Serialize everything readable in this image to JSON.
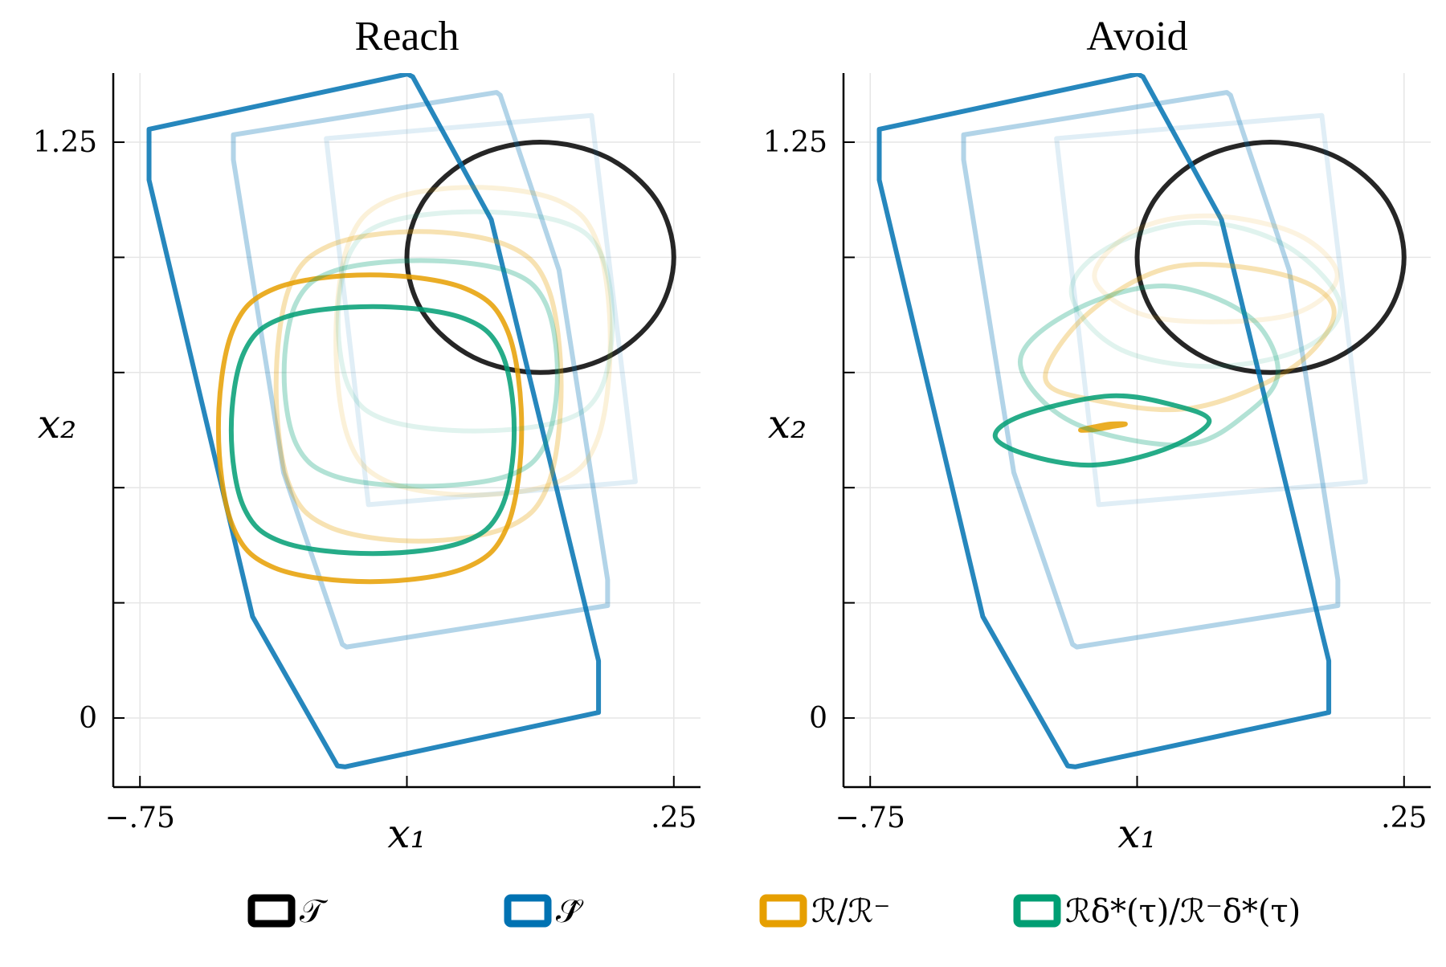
{
  "chart_data": [
    {
      "type": "polygon",
      "title": "Reach",
      "x_label": "x₁",
      "y_label": "x₂",
      "xlim": [
        -0.8,
        0.3
      ],
      "ylim": [
        -0.15,
        1.4
      ],
      "xticks": [
        {
          "value": -0.75,
          "label": "−.75"
        },
        {
          "value": -0.25,
          "label": null
        },
        {
          "value": 0.25,
          "label": ".25"
        }
      ],
      "yticks": [
        0,
        {
          "value": 0.25,
          "label": null
        },
        {
          "value": 0.5,
          "label": null
        },
        {
          "value": 0.75,
          "label": null
        },
        {
          "value": 1.0,
          "label": null
        },
        1.25
      ],
      "grid": true,
      "series": [
        {
          "color": "#000000",
          "opacity": 0.85,
          "smooth": true,
          "x": [
            0.25,
            0.217,
            0.125,
            0,
            -0.125,
            -0.217,
            -0.25,
            -0.217,
            -0.125,
            0,
            0.125,
            0.217
          ],
          "y": [
            1,
            1.125,
            1.217,
            1.25,
            1.217,
            1.125,
            1,
            0.875,
            0.783,
            0.75,
            0.783,
            0.875
          ]
        },
        {
          "color": "#0072b2",
          "opacity": 0.12,
          "smooth": false,
          "x": [
            -0.401,
            0.096,
            0.178,
            -0.322
          ],
          "y": [
            1.258,
            1.308,
            0.513,
            0.463
          ]
        },
        {
          "color": "#0072b2",
          "opacity": 0.3,
          "smooth": false,
          "x": [
            -0.575,
            -0.082,
            -0.075,
            0.035,
            0.126,
            0.126,
            -0.363,
            -0.371,
            -0.481,
            -0.575
          ],
          "y": [
            1.266,
            1.358,
            1.352,
            0.972,
            0.3,
            0.244,
            0.154,
            0.16,
            0.533,
            1.212
          ]
        },
        {
          "color": "#0072b2",
          "opacity": 0.85,
          "smooth": false,
          "x": [
            -0.733,
            -0.249,
            -0.239,
            -0.092,
            0.109,
            0.109,
            -0.366,
            -0.38,
            -0.539,
            -0.733
          ],
          "y": [
            1.278,
            1.398,
            1.392,
            1.082,
            0.124,
            0.012,
            -0.106,
            -0.104,
            0.22,
            1.168
          ]
        },
        {
          "color": "#e69f00",
          "opacity": 0.15,
          "smooth": true,
          "x": [
            0.131,
            0.108,
            0.036,
            -0.126,
            -0.288,
            -0.36,
            -0.383,
            -0.36,
            -0.288,
            -0.126,
            0.036,
            0.108
          ],
          "y": [
            0.818,
            1.028,
            1.122,
            1.152,
            1.122,
            1.028,
            0.818,
            0.608,
            0.514,
            0.484,
            0.514,
            0.608
          ]
        },
        {
          "color": "#e69f00",
          "opacity": 0.3,
          "smooth": true,
          "x": [
            0.039,
            0.015,
            -0.06,
            -0.228,
            -0.396,
            -0.471,
            -0.495,
            -0.471,
            -0.396,
            -0.228,
            -0.06,
            0.015
          ],
          "y": [
            0.72,
            0.932,
            1.025,
            1.056,
            1.025,
            0.932,
            0.72,
            0.508,
            0.415,
            0.384,
            0.415,
            0.508
          ]
        },
        {
          "color": "#e69f00",
          "opacity": 0.85,
          "smooth": true,
          "x": [
            -0.035,
            -0.061,
            -0.14,
            -0.319,
            -0.498,
            -0.577,
            -0.603,
            -0.577,
            -0.498,
            -0.319,
            -0.14,
            -0.061
          ],
          "y": [
            0.629,
            0.839,
            0.932,
            0.962,
            0.932,
            0.839,
            0.629,
            0.419,
            0.326,
            0.296,
            0.326,
            0.419
          ]
        },
        {
          "color": "#009e73",
          "opacity": 0.12,
          "smooth": true,
          "x": [
            0.135,
            0.112,
            0.04,
            -0.122,
            -0.284,
            -0.356,
            -0.379,
            -0.356,
            -0.284,
            -0.122,
            0.04,
            0.112
          ],
          "y": [
            0.861,
            1.011,
            1.077,
            1.099,
            1.077,
            1.011,
            0.861,
            0.711,
            0.645,
            0.623,
            0.645,
            0.711
          ]
        },
        {
          "color": "#009e73",
          "opacity": 0.3,
          "smooth": true,
          "x": [
            0.032,
            0.009,
            -0.063,
            -0.224,
            -0.385,
            -0.457,
            -0.48,
            -0.457,
            -0.385,
            -0.224,
            -0.063,
            0.009
          ],
          "y": [
            0.748,
            0.902,
            0.971,
            0.993,
            0.971,
            0.902,
            0.748,
            0.594,
            0.525,
            0.503,
            0.525,
            0.594
          ]
        },
        {
          "color": "#009e73",
          "opacity": 0.85,
          "smooth": true,
          "x": [
            -0.049,
            -0.073,
            -0.147,
            -0.314,
            -0.481,
            -0.555,
            -0.579,
            -0.555,
            -0.481,
            -0.314,
            -0.147,
            -0.073
          ],
          "y": [
            0.625,
            0.794,
            0.869,
            0.893,
            0.869,
            0.794,
            0.625,
            0.456,
            0.381,
            0.357,
            0.381,
            0.456
          ]
        }
      ]
    },
    {
      "type": "polygon",
      "title": "Avoid",
      "x_label": "x₁",
      "y_label": "x₂",
      "xlim": [
        -0.8,
        0.3
      ],
      "ylim": [
        -0.15,
        1.4
      ],
      "xticks": [
        {
          "value": -0.75,
          "label": "−.75"
        },
        {
          "value": -0.25,
          "label": null
        },
        {
          "value": 0.25,
          "label": ".25"
        }
      ],
      "yticks": [
        0,
        {
          "value": 0.25,
          "label": null
        },
        {
          "value": 0.5,
          "label": null
        },
        {
          "value": 0.75,
          "label": null
        },
        {
          "value": 1.0,
          "label": null
        },
        1.25
      ],
      "grid": true,
      "series": [
        {
          "color": "#000000",
          "opacity": 0.85,
          "smooth": true,
          "x": [
            0.25,
            0.217,
            0.125,
            0,
            -0.125,
            -0.217,
            -0.25,
            -0.217,
            -0.125,
            0,
            0.125,
            0.217
          ],
          "y": [
            1,
            1.125,
            1.217,
            1.25,
            1.217,
            1.125,
            1,
            0.875,
            0.783,
            0.75,
            0.783,
            0.875
          ]
        },
        {
          "color": "#0072b2",
          "opacity": 0.12,
          "smooth": false,
          "x": [
            -0.401,
            0.096,
            0.178,
            -0.322
          ],
          "y": [
            1.258,
            1.308,
            0.513,
            0.463
          ]
        },
        {
          "color": "#0072b2",
          "opacity": 0.3,
          "smooth": false,
          "x": [
            -0.575,
            -0.082,
            -0.075,
            0.035,
            0.126,
            0.126,
            -0.363,
            -0.371,
            -0.481,
            -0.575
          ],
          "y": [
            1.266,
            1.358,
            1.352,
            0.972,
            0.3,
            0.244,
            0.154,
            0.16,
            0.533,
            1.212
          ]
        },
        {
          "color": "#0072b2",
          "opacity": 0.85,
          "smooth": false,
          "x": [
            -0.733,
            -0.249,
            -0.239,
            -0.092,
            0.109,
            0.109,
            -0.366,
            -0.38,
            -0.539,
            -0.733
          ],
          "y": [
            1.278,
            1.398,
            1.392,
            1.082,
            0.124,
            0.012,
            -0.106,
            -0.104,
            0.22,
            1.168
          ]
        },
        {
          "color": "#e69f00",
          "opacity": 0.12,
          "smooth": true,
          "x": [
            -0.33,
            -0.25,
            -0.111,
            0.05,
            0.125,
            0.05,
            -0.111,
            -0.25
          ],
          "y": [
            0.96,
            1.06,
            1.09,
            1.05,
            0.96,
            0.88,
            0.86,
            0.88
          ]
        },
        {
          "color": "#e69f00",
          "opacity": 0.3,
          "smooth": true,
          "x": [
            -0.422,
            -0.34,
            -0.18,
            0.03,
            0.119,
            0.04,
            -0.146,
            -0.33
          ],
          "y": [
            0.739,
            0.88,
            0.98,
            0.96,
            0.883,
            0.76,
            0.673,
            0.69
          ]
        },
        {
          "color": "#e69f00",
          "opacity": 0.85,
          "smooth": true,
          "x": [
            -0.356,
            -0.33,
            -0.3,
            -0.272,
            -0.3,
            -0.33
          ],
          "y": [
            0.625,
            0.632,
            0.638,
            0.638,
            0.632,
            0.626
          ]
        },
        {
          "color": "#009e73",
          "opacity": 0.12,
          "smooth": true,
          "x": [
            -0.373,
            -0.303,
            -0.137,
            0.028,
            0.13,
            0.063,
            -0.111,
            -0.286
          ],
          "y": [
            0.922,
            1.022,
            1.076,
            1.026,
            0.899,
            0.803,
            0.763,
            0.803
          ]
        },
        {
          "color": "#009e73",
          "opacity": 0.3,
          "smooth": true,
          "x": [
            -0.469,
            -0.373,
            -0.199,
            -0.042,
            0.014,
            -0.042,
            -0.164,
            -0.373
          ],
          "y": [
            0.773,
            0.882,
            0.938,
            0.873,
            0.753,
            0.663,
            0.593,
            0.643
          ]
        },
        {
          "color": "#009e73",
          "opacity": 0.85,
          "smooth": true,
          "x": [
            -0.516,
            -0.46,
            -0.303,
            -0.181,
            -0.115,
            -0.199,
            -0.335,
            -0.46
          ],
          "y": [
            0.613,
            0.659,
            0.699,
            0.679,
            0.643,
            0.583,
            0.549,
            0.573
          ]
        }
      ]
    }
  ],
  "legend": [
    {
      "label": "𝒯",
      "color": "#000000"
    },
    {
      "label": "𝒮̂",
      "color": "#0072b2"
    },
    {
      "label": "ℛ/ℛ⁻",
      "color": "#e69f00"
    },
    {
      "label": "ℛδ*(τ)/ℛ⁻δ*(τ)",
      "color": "#009e73"
    }
  ]
}
